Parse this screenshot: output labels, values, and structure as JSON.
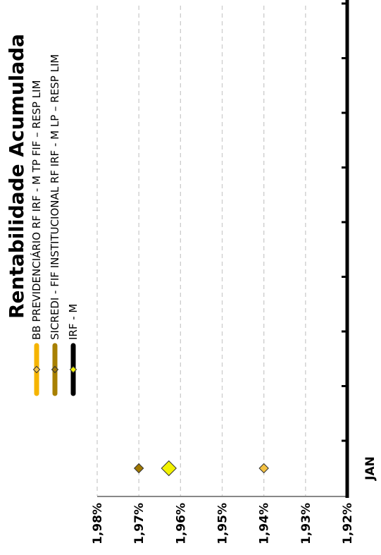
{
  "chart_data": {
    "type": "scatter",
    "title": "Rentabilidade Acumulada",
    "categories": [
      "JAN"
    ],
    "ylim": [
      1.92,
      1.98
    ],
    "yticks": [
      "1,92%",
      "1,93%",
      "1,94%",
      "1,95%",
      "1,96%",
      "1,97%",
      "1,98%"
    ],
    "grid": true,
    "legend_position": "top",
    "series": [
      {
        "name": "BB PREVIDENCIÁRIO RF IRF - M TP FIF – RESP LIM",
        "color": "#F5B400",
        "marker_color": "#F5C242",
        "values": [
          1.94
        ]
      },
      {
        "name": "SICREDI - FIF INSTITUCIONAL RF IRF - M LP – RESP LIM",
        "color": "#A88000",
        "marker_color": "#A07800",
        "values": [
          1.97
        ]
      },
      {
        "name": "IRF - M",
        "color": "#000000",
        "marker_color": "#F2F200",
        "values": [
          1.9628
        ]
      }
    ]
  }
}
